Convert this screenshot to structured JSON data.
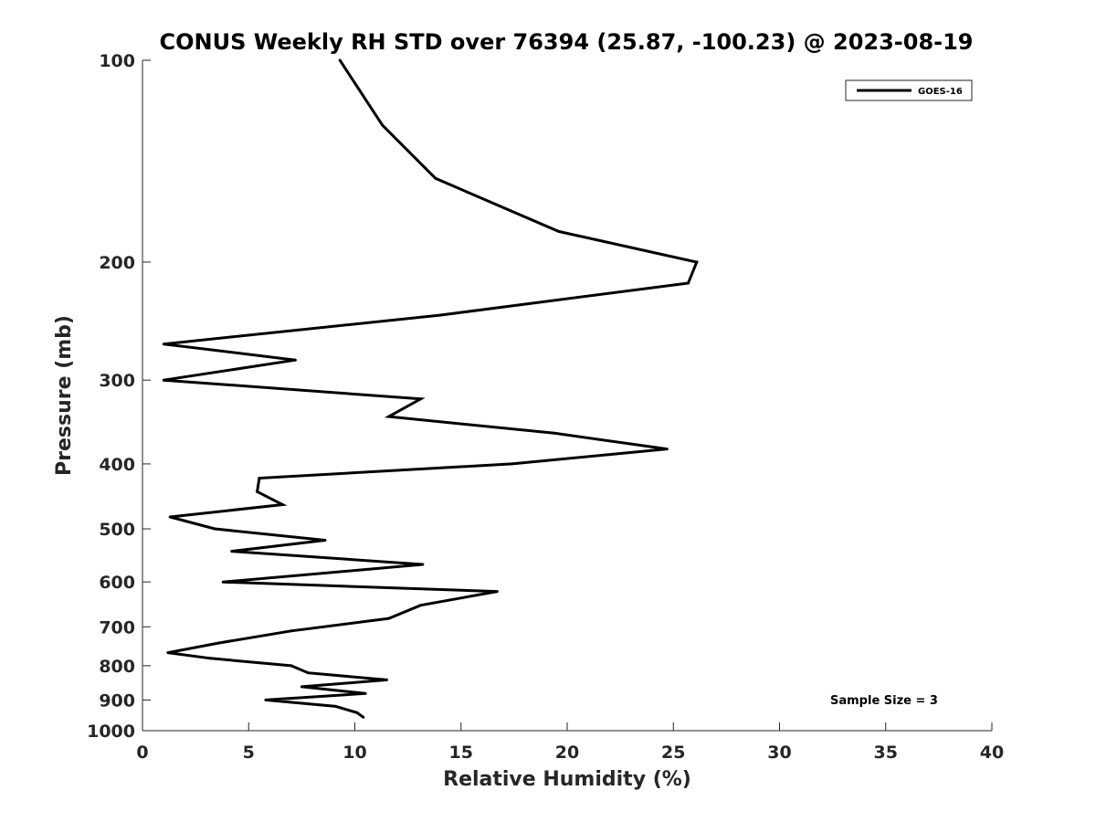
{
  "chart_data": {
    "type": "line",
    "title": "CONUS Weekly RH STD over 76394 (25.87, -100.23) @ 2023-08-19",
    "xlabel": "Relative Humidity (%)",
    "ylabel": "Pressure (mb)",
    "xlim": [
      0,
      40
    ],
    "ylim": [
      100,
      1000
    ],
    "yscale": "log",
    "y_reversed": true,
    "grid": false,
    "legend_position": "top-right",
    "x_ticks": [
      "0",
      "5",
      "10",
      "15",
      "20",
      "25",
      "30",
      "35",
      "40"
    ],
    "y_ticks": [
      "100",
      "200",
      "300",
      "400",
      "500",
      "600",
      "700",
      "800",
      "900",
      "1000"
    ],
    "series": [
      {
        "name": "GOES-16",
        "color": "#000000",
        "points": [
          {
            "x": 9.3,
            "y": 100
          },
          {
            "x": 11.3,
            "y": 125
          },
          {
            "x": 13.8,
            "y": 150
          },
          {
            "x": 19.6,
            "y": 180
          },
          {
            "x": 26.1,
            "y": 200
          },
          {
            "x": 25.7,
            "y": 215
          },
          {
            "x": 14.0,
            "y": 240
          },
          {
            "x": 1.0,
            "y": 265
          },
          {
            "x": 7.2,
            "y": 280
          },
          {
            "x": 1.0,
            "y": 300
          },
          {
            "x": 13.1,
            "y": 320
          },
          {
            "x": 11.6,
            "y": 340
          },
          {
            "x": 19.4,
            "y": 360
          },
          {
            "x": 24.7,
            "y": 380
          },
          {
            "x": 17.4,
            "y": 400
          },
          {
            "x": 5.5,
            "y": 420
          },
          {
            "x": 5.4,
            "y": 440
          },
          {
            "x": 6.6,
            "y": 460
          },
          {
            "x": 1.3,
            "y": 480
          },
          {
            "x": 3.4,
            "y": 500
          },
          {
            "x": 8.6,
            "y": 520
          },
          {
            "x": 4.2,
            "y": 540
          },
          {
            "x": 13.2,
            "y": 565
          },
          {
            "x": 3.8,
            "y": 600
          },
          {
            "x": 16.7,
            "y": 620
          },
          {
            "x": 13.1,
            "y": 650
          },
          {
            "x": 11.6,
            "y": 680
          },
          {
            "x": 7.0,
            "y": 710
          },
          {
            "x": 3.6,
            "y": 740
          },
          {
            "x": 1.2,
            "y": 765
          },
          {
            "x": 3.2,
            "y": 780
          },
          {
            "x": 7.0,
            "y": 800
          },
          {
            "x": 7.8,
            "y": 820
          },
          {
            "x": 11.5,
            "y": 840
          },
          {
            "x": 7.5,
            "y": 860
          },
          {
            "x": 10.5,
            "y": 880
          },
          {
            "x": 5.8,
            "y": 900
          },
          {
            "x": 9.1,
            "y": 920
          },
          {
            "x": 10.1,
            "y": 940
          },
          {
            "x": 10.4,
            "y": 955
          }
        ]
      }
    ],
    "annotation": "Sample Size = 3"
  }
}
